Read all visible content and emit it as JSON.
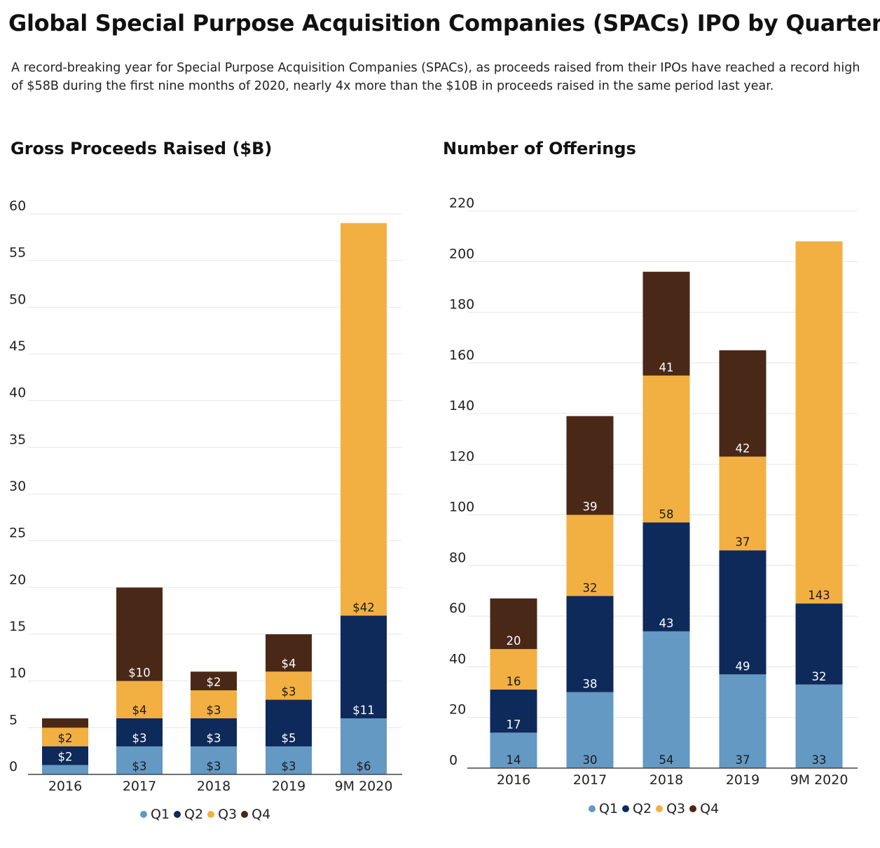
{
  "title": "Global Special Purpose Acquisition Companies (SPACs) IPO by Quarter",
  "subtitle": "A record-breaking year for Special Purpose Acquisition Companies (SPACs), as proceeds raised from their IPOs have reached a record high of $58B during the first nine months of 2020, nearly 4x more than the $10B in proceeds raised in the same period last year.",
  "colors": {
    "Q1": "#6399c3",
    "Q2": "#0e2a5a",
    "Q3": "#f2b042",
    "Q4": "#4a2818"
  },
  "legend": [
    "Q1",
    "Q2",
    "Q3",
    "Q4"
  ],
  "chart_data": [
    {
      "type": "bar",
      "stacked": true,
      "title": "Gross Proceeds Raised ($B)",
      "xlabel": "",
      "ylabel": "",
      "categories": [
        "2016",
        "2017",
        "2018",
        "2019",
        "9M 2020"
      ],
      "yticks": [
        0,
        5,
        10,
        15,
        20,
        25,
        30,
        35,
        40,
        45,
        50,
        55,
        60
      ],
      "ylim": [
        0,
        60
      ],
      "grid": true,
      "legend_position": "bottom",
      "series": [
        {
          "name": "Q1",
          "values": [
            1,
            3,
            3,
            3,
            6
          ],
          "labels": [
            "",
            "$3",
            "$3",
            "$3",
            "$6"
          ]
        },
        {
          "name": "Q2",
          "values": [
            2,
            3,
            3,
            5,
            11
          ],
          "labels": [
            "$2",
            "$3",
            "$3",
            "$5",
            "$11"
          ]
        },
        {
          "name": "Q3",
          "values": [
            2,
            4,
            3,
            3,
            42
          ],
          "labels": [
            "$2",
            "$4",
            "$3",
            "$3",
            "$42"
          ]
        },
        {
          "name": "Q4",
          "values": [
            1,
            10,
            2,
            4,
            0
          ],
          "labels": [
            "",
            "$10",
            "$2",
            "$4",
            ""
          ]
        }
      ]
    },
    {
      "type": "bar",
      "stacked": true,
      "title": "Number of Offerings",
      "xlabel": "",
      "ylabel": "",
      "categories": [
        "2016",
        "2017",
        "2018",
        "2019",
        "9M 2020"
      ],
      "yticks": [
        0,
        20,
        40,
        60,
        80,
        100,
        120,
        140,
        160,
        180,
        200,
        220
      ],
      "ylim": [
        0,
        220
      ],
      "grid": true,
      "legend_position": "bottom",
      "series": [
        {
          "name": "Q1",
          "values": [
            14,
            30,
            54,
            37,
            33
          ],
          "labels": [
            "14",
            "30",
            "54",
            "37",
            "33"
          ]
        },
        {
          "name": "Q2",
          "values": [
            17,
            38,
            43,
            49,
            32
          ],
          "labels": [
            "17",
            "38",
            "43",
            "49",
            "32"
          ]
        },
        {
          "name": "Q3",
          "values": [
            16,
            32,
            58,
            37,
            143
          ],
          "labels": [
            "16",
            "32",
            "58",
            "37",
            "143"
          ]
        },
        {
          "name": "Q4",
          "values": [
            20,
            39,
            41,
            42,
            0
          ],
          "labels": [
            "20",
            "39",
            "41",
            "42",
            ""
          ]
        }
      ]
    }
  ]
}
